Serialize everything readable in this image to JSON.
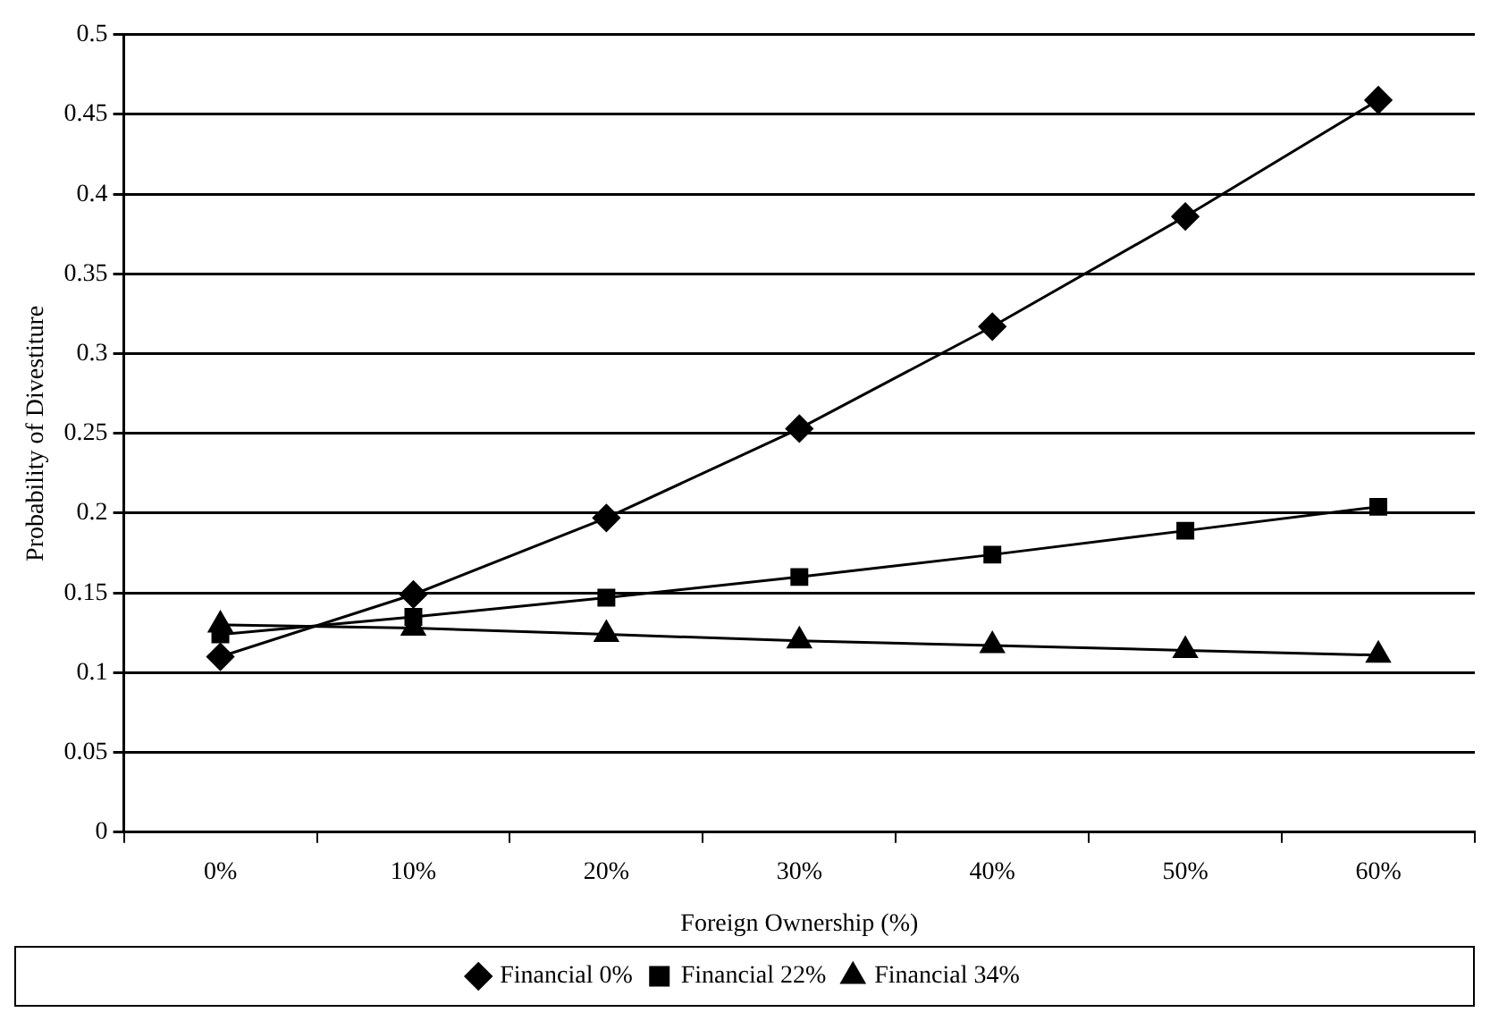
{
  "chart_data": {
    "type": "line",
    "xlabel": "Foreign Ownership (%)",
    "ylabel": "Probability of Divestiture",
    "categories": [
      "0%",
      "10%",
      "20%",
      "30%",
      "40%",
      "50%",
      "60%"
    ],
    "series": [
      {
        "name": "Financial 0%",
        "color": "#000000",
        "marker": "diamond",
        "values": [
          0.11,
          0.149,
          0.197,
          0.253,
          0.317,
          0.386,
          0.459
        ]
      },
      {
        "name": "Financial 22%",
        "color": "#000000",
        "marker": "square",
        "values": [
          0.124,
          0.135,
          0.147,
          0.16,
          0.174,
          0.189,
          0.204
        ]
      },
      {
        "name": "Financial 34%",
        "color": "#000000",
        "marker": "triangle",
        "values": [
          0.13,
          0.128,
          0.124,
          0.12,
          0.117,
          0.114,
          0.111
        ]
      }
    ],
    "ylim": [
      0,
      0.5
    ],
    "yticks": [
      0,
      0.05,
      0.1,
      0.15,
      0.2,
      0.25,
      0.3,
      0.35,
      0.4,
      0.45,
      0.5
    ],
    "grid": "y",
    "legend": "bottom",
    "line_style": "solid"
  }
}
